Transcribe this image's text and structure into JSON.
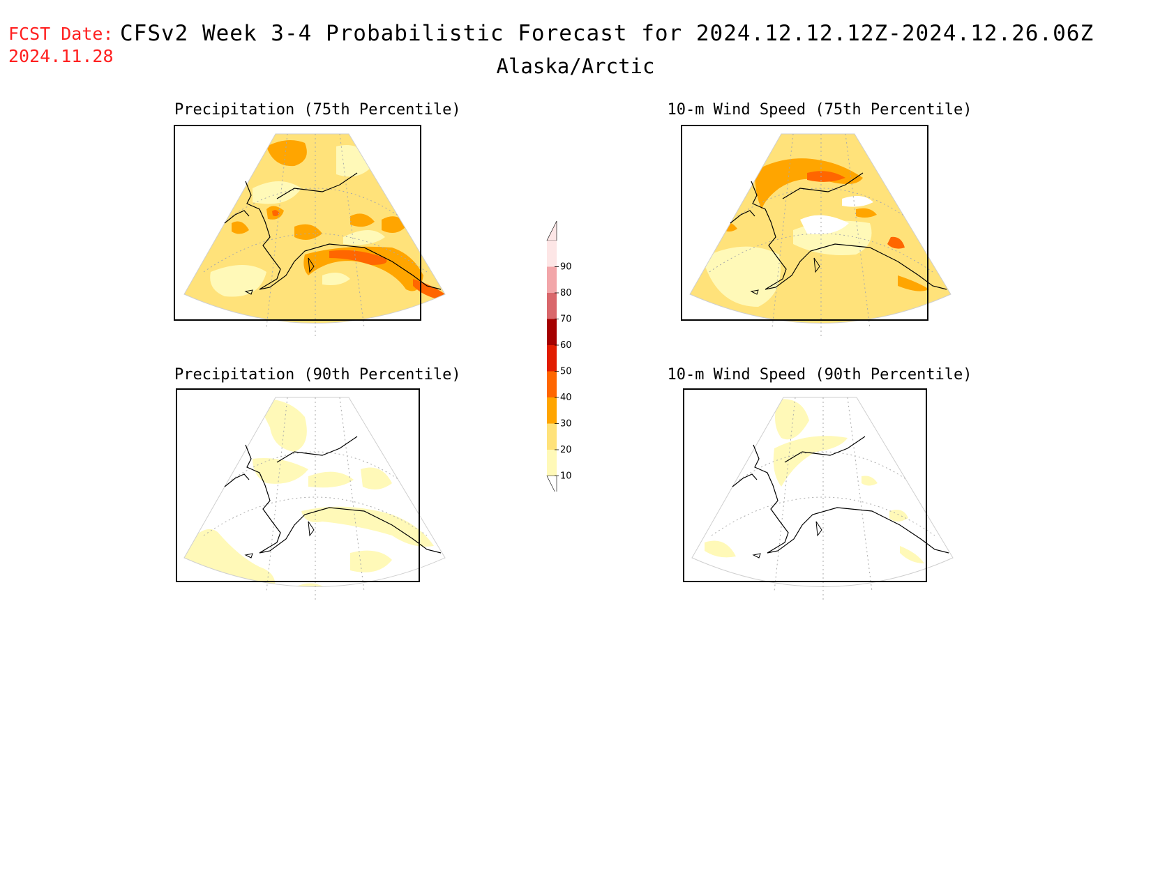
{
  "header": {
    "fcst_label": "FCST Date:",
    "fcst_date": "2024.11.28",
    "title": "CFSv2 Week 3-4 Probabilistic Forecast for 2024.12.12.12Z-2024.12.26.06Z",
    "subtitle": "Alaska/Arctic"
  },
  "panels": [
    {
      "title": "Precipitation (75th Percentile)"
    },
    {
      "title": "10-m Wind Speed (75th Percentile)"
    },
    {
      "title": "Precipitation (90th Percentile)"
    },
    {
      "title": "10-m Wind Speed (90th Percentile)"
    }
  ],
  "colorbar": {
    "levels": [
      "10",
      "20",
      "30",
      "40",
      "50",
      "60",
      "70",
      "80",
      "90"
    ],
    "colors": [
      "#fff9b8",
      "#ffe27a",
      "#ffa500",
      "#ff6600",
      "#e11c00",
      "#a50000",
      "#d9676b",
      "#f2a6a9",
      "#fde6e6"
    ]
  },
  "colors": {
    "c10": "#fff9b8",
    "c20": "#ffe27a",
    "c30": "#ffa500",
    "c40": "#ff6600",
    "header_red": "#ff2020"
  }
}
